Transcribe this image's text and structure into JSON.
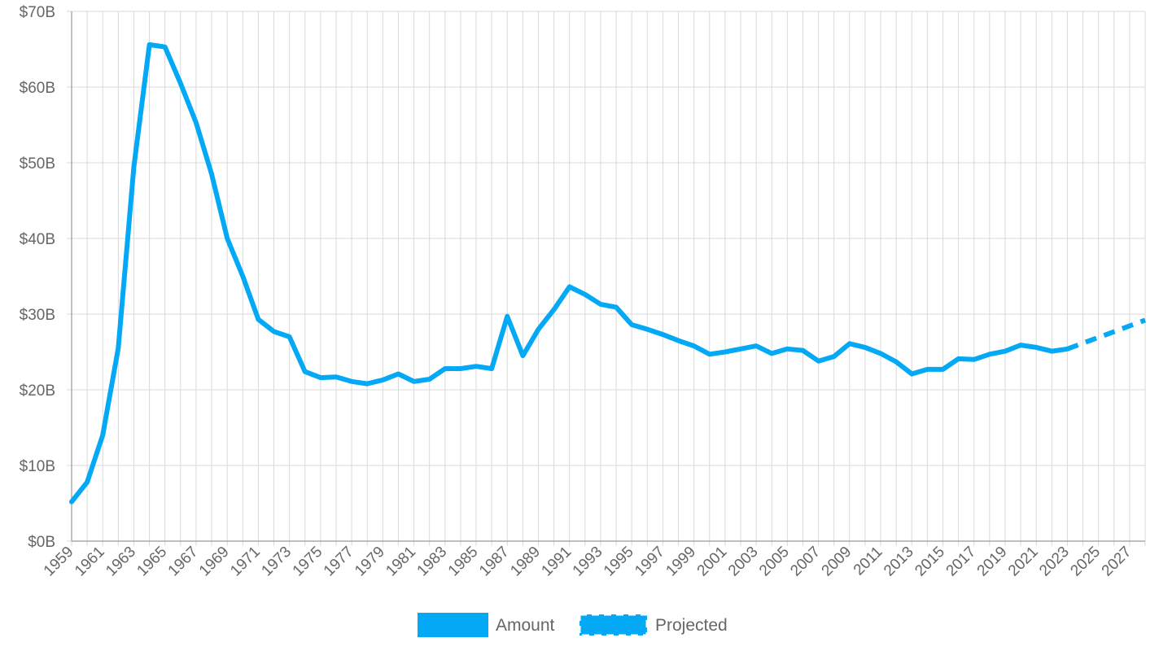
{
  "colors": {
    "line": "#03a9f4",
    "grid": "#d9d9d9",
    "axis": "#999999",
    "text": "#666666"
  },
  "legend": {
    "amount_label": "Amount",
    "projected_label": "Projected"
  },
  "chart_data": {
    "type": "line",
    "title": "",
    "xlabel": "",
    "ylabel": "",
    "xlim": [
      1959,
      2028
    ],
    "ylim": [
      0,
      70
    ],
    "y_ticks": [
      0,
      10,
      20,
      30,
      40,
      50,
      60,
      70
    ],
    "y_tick_labels": [
      "$0B",
      "$10B",
      "$20B",
      "$30B",
      "$40B",
      "$50B",
      "$60B",
      "$70B"
    ],
    "x_tick_labels": [
      "1959",
      "1961",
      "1963",
      "1965",
      "1967",
      "1969",
      "1971",
      "1973",
      "1975",
      "1977",
      "1979",
      "1981",
      "1983",
      "1985",
      "1987",
      "1989",
      "1991",
      "1993",
      "1995",
      "1997",
      "1999",
      "2001",
      "2003",
      "2005",
      "2007",
      "2009",
      "2011",
      "2013",
      "2015",
      "2017",
      "2019",
      "2021",
      "2023",
      "2025",
      "2027"
    ],
    "grid": true,
    "legend_position": "bottom",
    "series": [
      {
        "name": "Amount",
        "style": "solid",
        "x": [
          1959,
          1960,
          1961,
          1962,
          1963,
          1964,
          1965,
          1966,
          1967,
          1968,
          1969,
          1970,
          1971,
          1972,
          1973,
          1974,
          1975,
          1976,
          1977,
          1978,
          1979,
          1980,
          1981,
          1982,
          1983,
          1984,
          1985,
          1986,
          1987,
          1988,
          1989,
          1990,
          1991,
          1992,
          1993,
          1994,
          1995,
          1996,
          1997,
          1998,
          1999,
          2000,
          2001,
          2002,
          2003,
          2004,
          2005,
          2006,
          2007,
          2008,
          2009,
          2010,
          2011,
          2012,
          2013,
          2014,
          2015,
          2016,
          2017,
          2018,
          2019,
          2020,
          2021,
          2022,
          2023
        ],
        "values": [
          5.2,
          7.8,
          14.0,
          25.5,
          49.5,
          65.6,
          65.3,
          60.5,
          55.3,
          48.5,
          40.0,
          35.0,
          29.3,
          27.7,
          27.0,
          22.4,
          21.6,
          21.7,
          21.1,
          20.8,
          21.3,
          22.1,
          21.1,
          21.4,
          22.8,
          22.8,
          23.1,
          22.8,
          29.7,
          24.5,
          28.0,
          30.6,
          33.6,
          32.6,
          31.3,
          30.9,
          28.6,
          28.0,
          27.3,
          26.5,
          25.8,
          24.7,
          25.0,
          25.4,
          25.8,
          24.8,
          25.4,
          25.2,
          23.8,
          24.4,
          26.1,
          25.6,
          24.8,
          23.7,
          22.1,
          22.7,
          22.7,
          24.1,
          24.0,
          24.7,
          25.1,
          25.9,
          25.6,
          25.1,
          25.4
        ]
      },
      {
        "name": "Projected",
        "style": "dashed",
        "x": [
          2023,
          2028
        ],
        "values": [
          25.4,
          29.2
        ]
      }
    ]
  }
}
